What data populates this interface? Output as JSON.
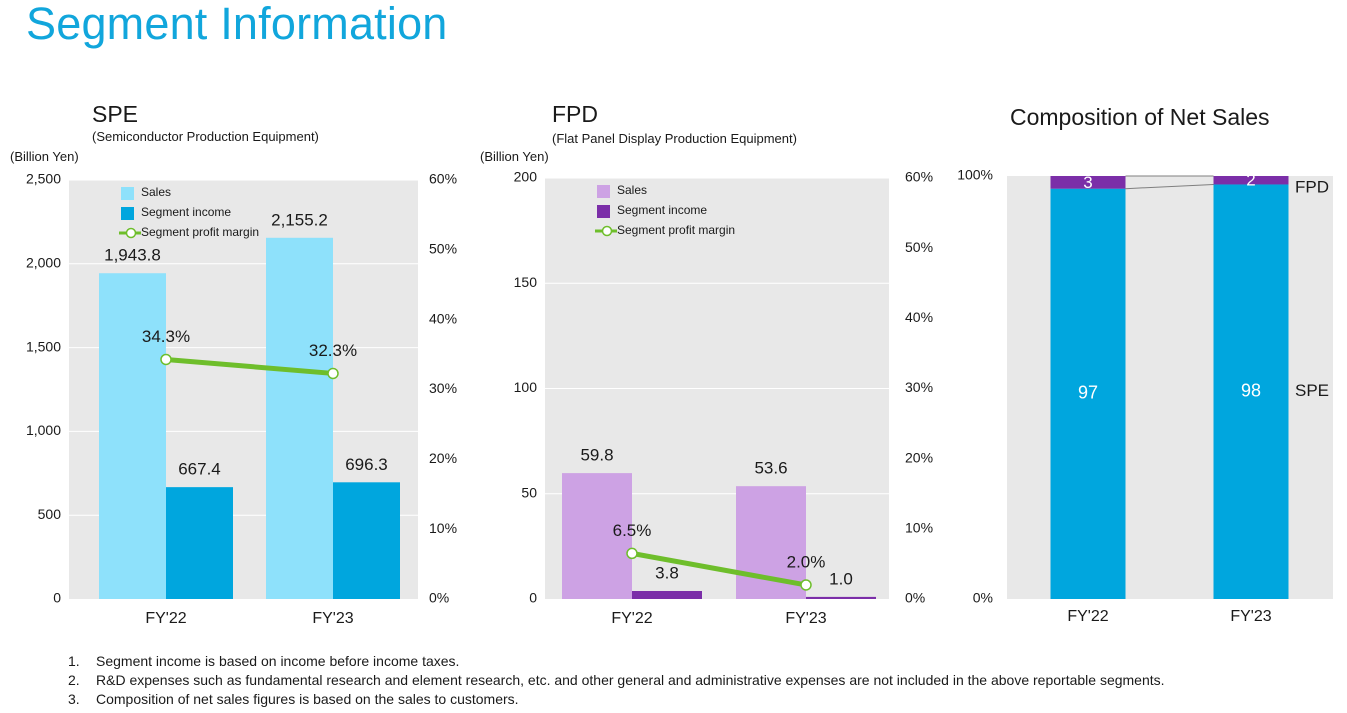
{
  "title": "Segment Information",
  "panels": {
    "spe": {
      "title": "SPE",
      "subtitle": "(Semiconductor Production Equipment)",
      "unit": "(Billion Yen)"
    },
    "fpd": {
      "title": "FPD",
      "subtitle": "(Flat Panel Display Production Equipment)",
      "unit": "(Billion Yen)"
    },
    "composition": {
      "title": "Composition of Net Sales"
    }
  },
  "chart_data": [
    {
      "type": "bar",
      "title": "SPE",
      "subtitle": "(Semiconductor Production Equipment)",
      "ylabel": "(Billion Yen)",
      "categories": [
        "FY'22",
        "FY'23"
      ],
      "series": [
        {
          "name": "Sales",
          "kind": "bar",
          "values": [
            1943.8,
            2155.2
          ],
          "labels": [
            "1,943.8",
            "2,155.2"
          ],
          "color": "#8ee1fb"
        },
        {
          "name": "Segment income",
          "kind": "bar",
          "values": [
            667.4,
            696.3
          ],
          "labels": [
            "667.4",
            "696.3"
          ],
          "color": "#00a6de"
        },
        {
          "name": "Segment profit margin",
          "kind": "line",
          "axis": "right",
          "values": [
            34.3,
            32.3
          ],
          "labels": [
            "34.3%",
            "32.3%"
          ],
          "color": "#6ebe2b"
        }
      ],
      "ylim": [
        0,
        2500
      ],
      "yticks": [
        "0",
        "500",
        "1,000",
        "1,500",
        "2,000",
        "2,500"
      ],
      "y2lim": [
        0,
        60
      ],
      "y2ticks": [
        "0%",
        "10%",
        "20%",
        "30%",
        "40%",
        "50%",
        "60%"
      ],
      "legend": "top-left",
      "grid": true
    },
    {
      "type": "bar",
      "title": "FPD",
      "subtitle": "(Flat Panel Display Production Equipment)",
      "ylabel": "(Billion Yen)",
      "categories": [
        "FY'22",
        "FY'23"
      ],
      "series": [
        {
          "name": "Sales",
          "kind": "bar",
          "values": [
            59.8,
            53.6
          ],
          "labels": [
            "59.8",
            "53.6"
          ],
          "color": "#cda2e4"
        },
        {
          "name": "Segment income",
          "kind": "bar",
          "values": [
            3.8,
            1.0
          ],
          "labels": [
            "3.8",
            "1.0"
          ],
          "color": "#7b2ea8"
        },
        {
          "name": "Segment profit margin",
          "kind": "line",
          "axis": "right",
          "values": [
            6.5,
            2.0
          ],
          "labels": [
            "6.5%",
            "2.0%"
          ],
          "color": "#6ebe2b"
        }
      ],
      "ylim": [
        0,
        200
      ],
      "yticks": [
        "0",
        "50",
        "100",
        "150",
        "200"
      ],
      "y2lim": [
        0,
        60
      ],
      "y2ticks": [
        "0%",
        "10%",
        "20%",
        "30%",
        "40%",
        "50%",
        "60%"
      ],
      "legend": "top-left",
      "grid": true
    },
    {
      "type": "bar",
      "stacked": true,
      "title": "Composition of Net Sales",
      "categories": [
        "FY'22",
        "FY'23"
      ],
      "series": [
        {
          "name": "SPE",
          "values": [
            97,
            98
          ],
          "labels": [
            "97",
            "98"
          ],
          "color": "#00a6de"
        },
        {
          "name": "FPD",
          "values": [
            3,
            2
          ],
          "labels": [
            "3",
            "2"
          ],
          "color": "#7b2ea8"
        }
      ],
      "ylim": [
        0,
        100
      ],
      "yticks": [
        "0%",
        "100%"
      ],
      "legend": "right"
    }
  ],
  "notes": [
    {
      "num": "1.",
      "text": "Segment income is based on income before income taxes."
    },
    {
      "num": "2.",
      "text": "R&D expenses such as fundamental research and element research, etc. and other general and administrative expenses are not included in the above reportable segments."
    },
    {
      "num": "3.",
      "text": "Composition of net sales figures is based on the sales to customers."
    }
  ]
}
